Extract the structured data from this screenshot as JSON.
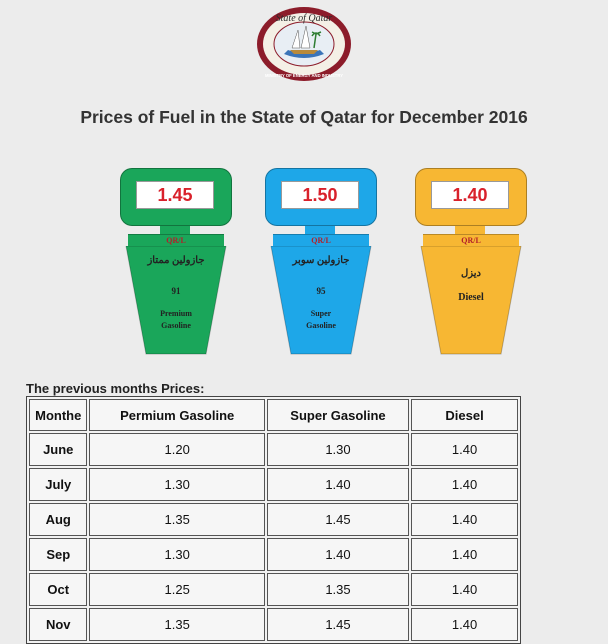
{
  "seal": {
    "top_text": "State of Qatar",
    "bottom_text": "MINISTRY OF ENERGY AND INDUSTRY"
  },
  "title": "Prices of Fuel in the State of Qatar for December 2016",
  "pumps": [
    {
      "price": "1.45",
      "unit": "QR/L",
      "arabic": "جازولين ممتاز",
      "octane": "91",
      "name_line1": "Premium",
      "name_line2": "Gasoline",
      "color": "#1aa65a"
    },
    {
      "price": "1.50",
      "unit": "QR/L",
      "arabic": "جازولين سوبر",
      "octane": "95",
      "name_line1": "Super",
      "name_line2": "Gasoline",
      "color": "#1ea7e8"
    },
    {
      "price": "1.40",
      "unit": "QR/L",
      "arabic": "ديزل",
      "octane": "",
      "name_line1": "Diesel",
      "name_line2": "",
      "color": "#f7b733"
    }
  ],
  "previous": {
    "title": "The previous months  Prices:",
    "headers": [
      "Monthe",
      "Permium Gasoline",
      "Super Gasoline",
      "Diesel"
    ],
    "rows": [
      [
        "June",
        "1.20",
        "1.30",
        "1.40"
      ],
      [
        "July",
        "1.30",
        "1.40",
        "1.40"
      ],
      [
        "Aug",
        "1.35",
        "1.45",
        "1.40"
      ],
      [
        "Sep",
        "1.30",
        "1.40",
        "1.40"
      ],
      [
        "Oct",
        "1.25",
        "1.35",
        "1.40"
      ],
      [
        "Nov",
        "1.35",
        "1.45",
        "1.40"
      ]
    ]
  }
}
